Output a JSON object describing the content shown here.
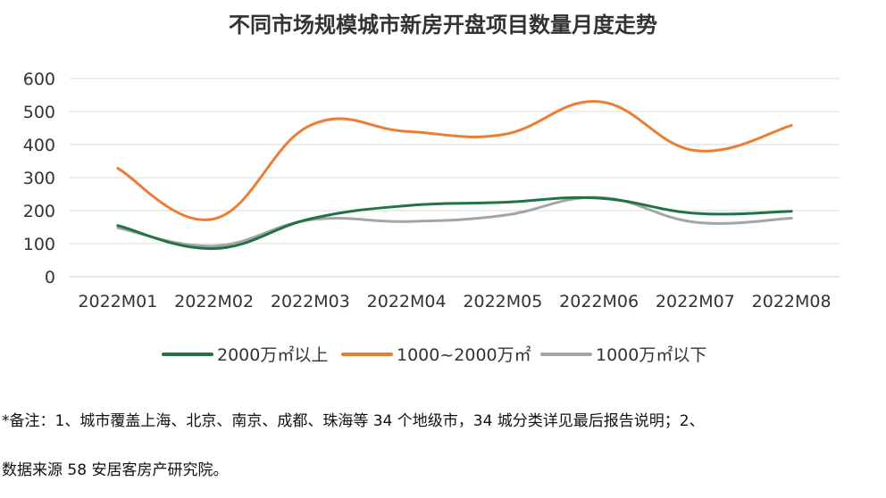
{
  "chart_data": {
    "type": "line",
    "title": "不同市场规模城市新房开盘项目数量月度走势",
    "categories": [
      "2022M01",
      "2022M02",
      "2022M03",
      "2022M04",
      "2022M05",
      "2022M06",
      "2022M07",
      "2022M08"
    ],
    "ylim": [
      0,
      600
    ],
    "yticks": [
      0,
      100,
      200,
      300,
      400,
      500,
      600
    ],
    "grid": true,
    "legend": "bottom",
    "series": [
      {
        "name": "2000万㎡以上",
        "color": "#217346",
        "values": [
          155,
          85,
          175,
          215,
          225,
          238,
          192,
          198
        ]
      },
      {
        "name": "1000~2000万㎡",
        "color": "#ED7D31",
        "values": [
          328,
          175,
          458,
          440,
          430,
          530,
          382,
          458
        ]
      },
      {
        "name": "1000万㎡以下",
        "color": "#A5A5A5",
        "values": [
          148,
          93,
          172,
          167,
          185,
          240,
          165,
          177
        ]
      }
    ]
  },
  "notes": {
    "line1": "*备注：1、城市覆盖上海、北京、南京、成都、珠海等 34 个地级市，34 城分类详见最后报告说明；2、",
    "line2": "数据来源 58 安居客房产研究院。"
  }
}
